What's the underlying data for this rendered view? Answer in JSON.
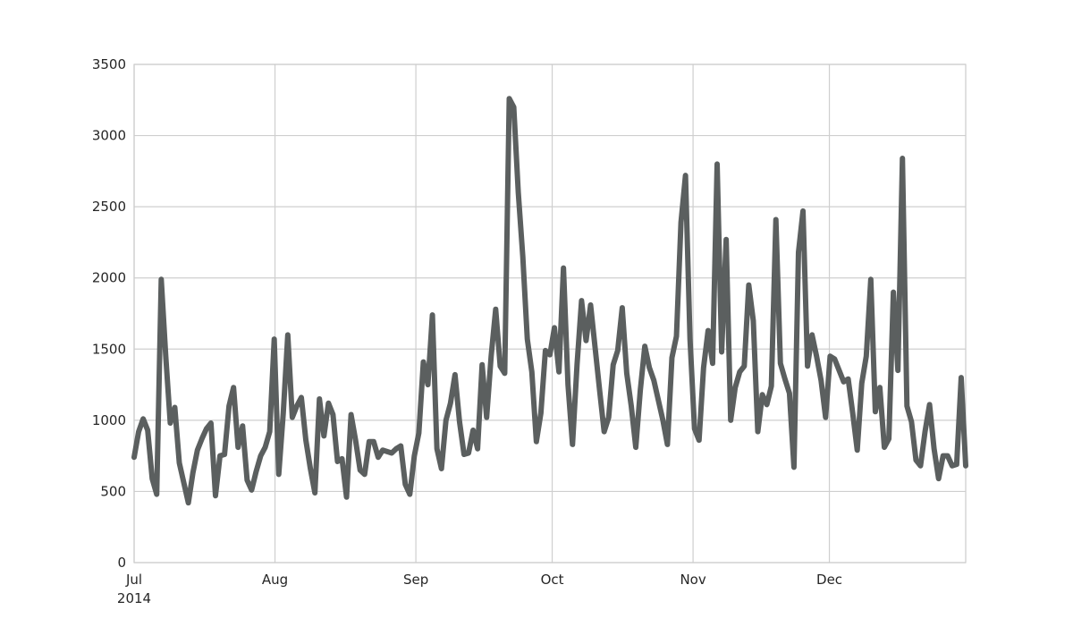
{
  "chart_data": {
    "type": "line",
    "title": "",
    "xlabel": "",
    "ylabel": "",
    "x_start": "2014-07-01",
    "x_end": "2014-12-31",
    "xlim": [
      "2014-07-01",
      "2014-12-31"
    ],
    "ylim": [
      0,
      3500
    ],
    "grid": true,
    "legend": "none",
    "colors": {
      "line": "#5b5f5f",
      "grid": "#cfcfcf",
      "frame": "#cccccc",
      "text": "#262626"
    },
    "y_ticks": [
      0,
      500,
      1000,
      1500,
      2000,
      2500,
      3000,
      3500
    ],
    "x_ticks": [
      {
        "date": "2014-07-01",
        "label": "Jul",
        "sublabel": "2014"
      },
      {
        "date": "2014-08-01",
        "label": "Aug",
        "sublabel": ""
      },
      {
        "date": "2014-09-01",
        "label": "Sep",
        "sublabel": ""
      },
      {
        "date": "2014-10-01",
        "label": "Oct",
        "sublabel": ""
      },
      {
        "date": "2014-11-01",
        "label": "Nov",
        "sublabel": ""
      },
      {
        "date": "2014-12-01",
        "label": "Dec",
        "sublabel": ""
      }
    ],
    "series": [
      {
        "values": [
          740,
          920,
          1010,
          930,
          590,
          480,
          1990,
          1450,
          980,
          1090,
          700,
          560,
          420,
          630,
          790,
          870,
          940,
          980,
          470,
          750,
          760,
          1100,
          1230,
          810,
          960,
          580,
          510,
          640,
          750,
          810,
          920,
          1570,
          620,
          1050,
          1600,
          1020,
          1100,
          1160,
          860,
          660,
          490,
          1150,
          890,
          1120,
          1040,
          710,
          730,
          460,
          1040,
          860,
          650,
          620,
          850,
          850,
          740,
          790,
          780,
          770,
          800,
          820,
          550,
          480,
          750,
          910,
          1410,
          1250,
          1740,
          800,
          660,
          1000,
          1120,
          1320,
          990,
          760,
          770,
          930,
          800,
          1390,
          1020,
          1450,
          1780,
          1380,
          1330,
          3260,
          3200,
          2600,
          2150,
          1570,
          1340,
          850,
          1050,
          1490,
          1460,
          1650,
          1340,
          2070,
          1250,
          830,
          1390,
          1840,
          1560,
          1810,
          1510,
          1210,
          920,
          1020,
          1390,
          1490,
          1790,
          1330,
          1100,
          810,
          1210,
          1520,
          1370,
          1280,
          1140,
          1000,
          830,
          1440,
          1590,
          2390,
          2720,
          1570,
          940,
          860,
          1370,
          1630,
          1400,
          2800,
          1480,
          2270,
          1000,
          1230,
          1340,
          1380,
          1950,
          1700,
          920,
          1180,
          1110,
          1240,
          2410,
          1400,
          1290,
          1190,
          670,
          2180,
          2470,
          1380,
          1600,
          1450,
          1280,
          1020,
          1450,
          1430,
          1350,
          1270,
          1290,
          1050,
          790,
          1260,
          1450,
          1990,
          1060,
          1230,
          810,
          870,
          1900,
          1350,
          2840,
          1100,
          990,
          720,
          680,
          920,
          1110,
          800,
          590,
          750,
          750,
          680,
          690,
          1300,
          680
        ]
      }
    ]
  }
}
